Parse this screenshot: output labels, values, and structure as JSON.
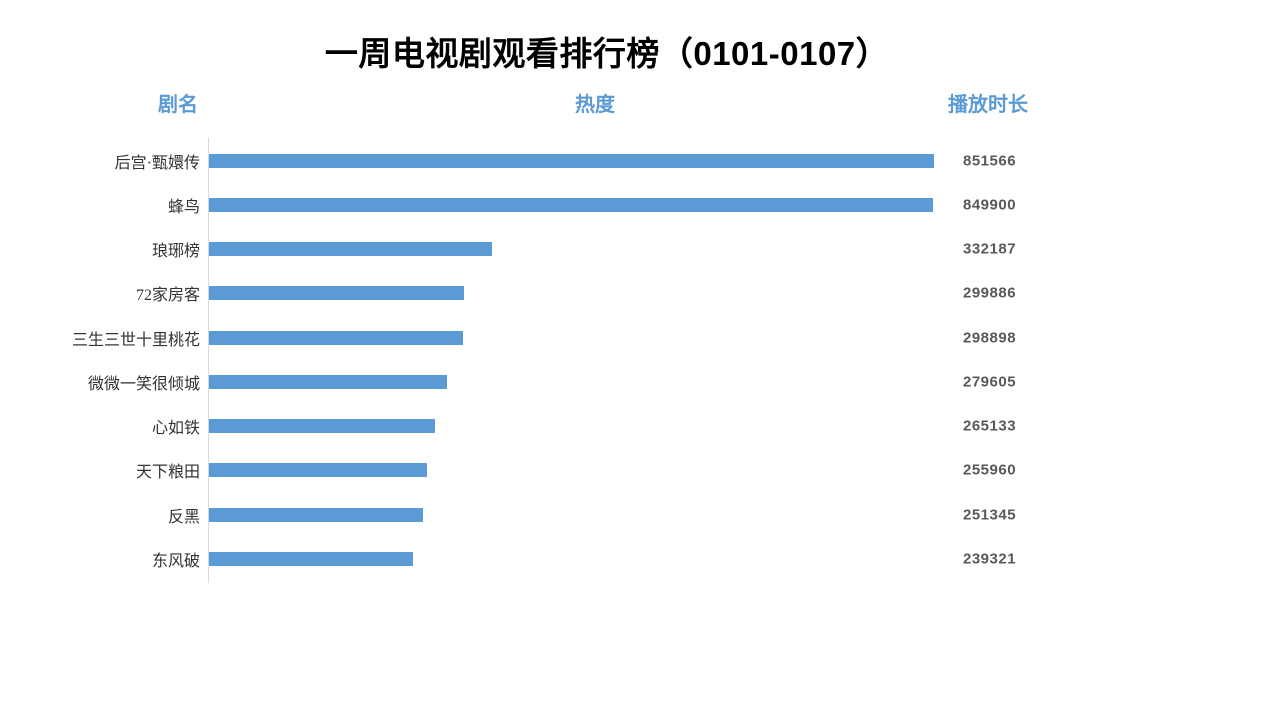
{
  "title": "一周电视剧观看排行榜（0101-0107）",
  "column_headers": {
    "name": "剧名",
    "heat": "热度",
    "duration": "播放时长"
  },
  "colors": {
    "background": "#ffffff",
    "title_text": "#000000",
    "header_text": "#5B9BD5",
    "bar": "#5B9BD5",
    "label_text": "#333333",
    "value_text": "#595959",
    "axis_line": "#D9D9D9"
  },
  "chart_data": {
    "type": "bar",
    "orientation": "horizontal",
    "title": "一周电视剧观看排行榜（0101-0107）",
    "category_axis_label": "剧名",
    "bar_axis_label": "热度",
    "value_column_label": "播放时长",
    "categories": [
      "后宫·甄嬛传",
      "蜂鸟",
      "琅琊榜",
      "72家房客",
      "三生三世十里桃花",
      "微微一笑很倾城",
      "心如铁",
      "天下粮田",
      "反黑",
      "东风破"
    ],
    "values": [
      851566,
      849900,
      332187,
      299886,
      298898,
      279605,
      265133,
      255960,
      251345,
      239321
    ],
    "xlim": [
      0,
      900000
    ],
    "grid": false,
    "legend": false,
    "data_labels": true
  }
}
